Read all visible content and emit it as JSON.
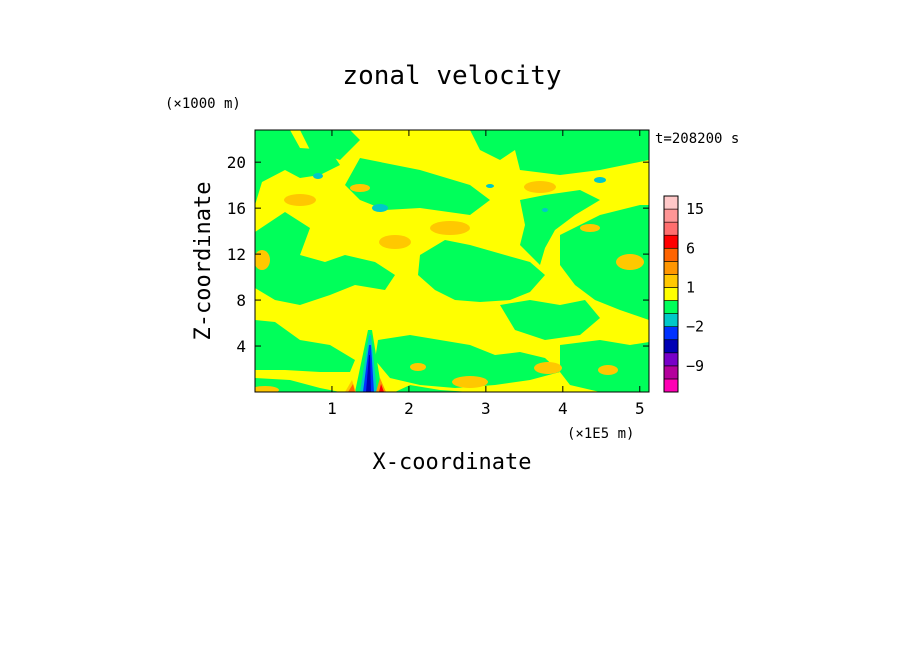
{
  "chart_data": {
    "type": "heatmap",
    "title": "zonal velocity",
    "xlabel": "X-coordinate",
    "ylabel": "Z-coordinate",
    "x_unit": "(×1E5 m)",
    "y_unit": "(×1000 m)",
    "time_label": "t=208200 s",
    "xlim": [
      0,
      5.12
    ],
    "ylim": [
      0,
      22.8
    ],
    "x_ticks": [
      1,
      2,
      3,
      4,
      5
    ],
    "y_ticks": [
      4,
      8,
      12,
      16,
      20
    ],
    "colorbar": {
      "levels": [
        -15,
        -12,
        -9,
        -6,
        -4,
        -2,
        -1,
        0,
        1,
        2,
        4,
        6,
        9,
        12,
        15,
        20
      ],
      "colors": [
        "#ff00b4",
        "#b4009c",
        "#7800c8",
        "#0000b4",
        "#0032ff",
        "#00c8c8",
        "#00ff5a",
        "#ffff00",
        "#ffc800",
        "#ff9600",
        "#ff6400",
        "#ff0000",
        "#ff6e6e",
        "#ff9696",
        "#ffc8c8"
      ],
      "tick_labels": [
        {
          "value": 15,
          "label": "15"
        },
        {
          "value": 6,
          "label": "6"
        },
        {
          "value": 1,
          "label": "1"
        },
        {
          "value": -2,
          "label": "−2"
        },
        {
          "value": -9,
          "label": "−9"
        }
      ]
    },
    "field_summary": {
      "background_level": "0 to 1 (yellow)",
      "large_patches_level": "-1 to 0 (green)",
      "small_patches_level": "1 to 2 (light orange)",
      "anomaly": "narrow plume near x=1.5, z=0–6 with values from -6 to +9"
    }
  }
}
